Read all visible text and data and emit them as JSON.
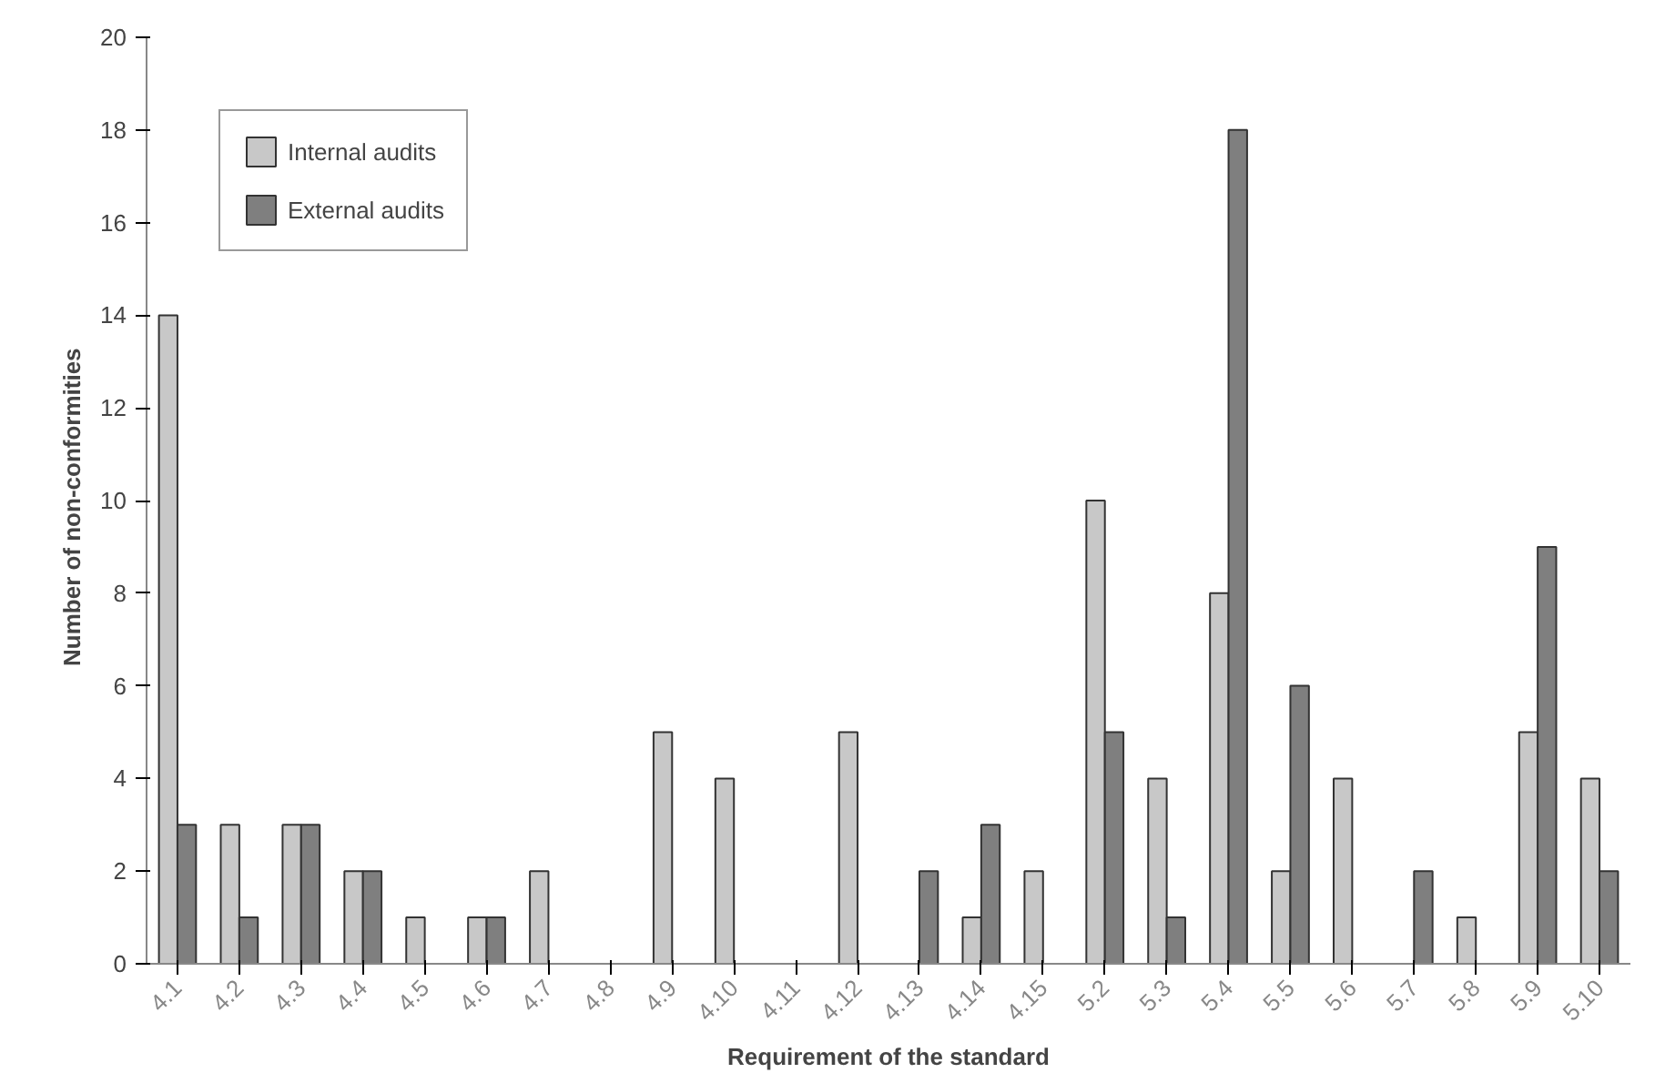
{
  "chart_data": {
    "type": "bar",
    "xlabel": "Requirement of the standard",
    "ylabel": "Number  of  non-conformities",
    "categories": [
      "4.1",
      "4.2",
      "4.3",
      "4.4",
      "4.5",
      "4.6",
      "4.7",
      "4.8",
      "4.9",
      "4.10",
      "4.11",
      "4.12",
      "4.13",
      "4.14",
      "4.15",
      "5.2",
      "5.3",
      "5.4",
      "5.5",
      "5.6",
      "5.7",
      "5.8",
      "5.9",
      "5.10"
    ],
    "series": [
      {
        "name": "Internal audits",
        "color": "#c8c8c8",
        "values": [
          14,
          3,
          3,
          2,
          1,
          1,
          2,
          0,
          5,
          4,
          0,
          5,
          0,
          1,
          2,
          10,
          4,
          8,
          2,
          4,
          0,
          1,
          5,
          4
        ]
      },
      {
        "name": "External audits",
        "color": "#7f7f7f",
        "values": [
          3,
          1,
          3,
          2,
          0,
          1,
          0,
          0,
          0,
          0,
          0,
          0,
          2,
          3,
          0,
          5,
          1,
          18,
          6,
          0,
          2,
          0,
          9,
          2
        ]
      }
    ],
    "ylim": [
      0,
      20
    ],
    "yticks": [
      0,
      2,
      4,
      6,
      8,
      10,
      12,
      14,
      16,
      18,
      20
    ],
    "grid": false,
    "legend": "top left"
  }
}
